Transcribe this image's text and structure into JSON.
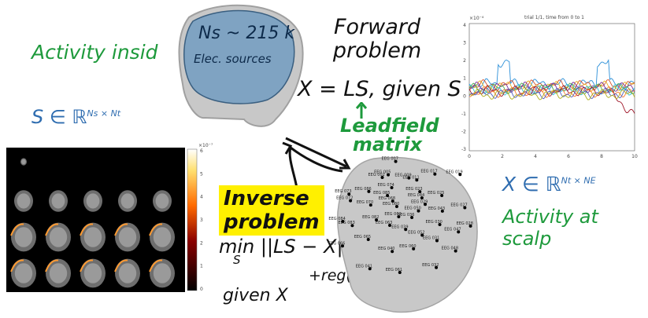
{
  "texts": {
    "activity_inside": "Activity insid",
    "source_math_base": "S ∈ ℝ",
    "source_math_sup": "Ns × Nt",
    "brain_count": "Ns ~ 215 k",
    "brain_label": "Elec. sources",
    "forward_line1": "Forward",
    "forward_line2": "problem",
    "forward_eq": "X = LS, given S",
    "leadfield_line1": "Leadfield",
    "leadfield_line2": "matrix",
    "inverse_line1": "Inverse",
    "inverse_line2": "problem",
    "inverse_eq": "min ||LS − X||",
    "inverse_sub": "S",
    "inverse_reg": "+reg(S)",
    "given_x": "given X",
    "scalp_math_base": "X ∈ ℝ",
    "scalp_math_sup": "Nt × NE",
    "activity_scalp": "Activity at scalp"
  },
  "colorbar": {
    "exponent": "×10⁻⁷",
    "ticks": [
      "6",
      "5",
      "4",
      "3",
      "2",
      "1",
      "0"
    ]
  },
  "eeg_plot": {
    "title": "trial 1/1, time from 0 to 1",
    "exponent": "×10⁻⁴",
    "y_ticks": [
      "4",
      "3",
      "2",
      "1",
      "0",
      "-1",
      "-2",
      "-3"
    ],
    "x_ticks": [
      "0",
      "2",
      "4",
      "6",
      "8",
      "10"
    ]
  },
  "electrodes": [
    "EEG 044",
    "EEG 043",
    "EEG 047",
    "EEG 048",
    "EEG 050",
    "EEG 052",
    "EEG 060",
    "EEG 061",
    "EEG 062",
    "EEG 063",
    "EEG 065",
    "EEG 066",
    "EEG 068",
    "EEG 070",
    "EEG 072",
    "EEG 073",
    "EEG 074",
    "EEG 002",
    "EEG 005",
    "EEG 007",
    "EEG 009",
    "EEG 011",
    "EEG 017",
    "EEG 019",
    "EEG 023",
    "EEG 025",
    "EEG 027",
    "EEG 028",
    "EEG 029",
    "EEG 030",
    "EEG 031",
    "EEG 032",
    "EEG 036",
    "EEG 039",
    "EEG 040",
    "EEG 041",
    "EEG 080",
    "EEG 082",
    "EEG 083",
    "EEG 084",
    "EEG 085",
    "EEG 086"
  ],
  "colors": {
    "green_ink": "#1e9a3c",
    "blue_ink": "#2f6db0",
    "highlight": "#fff000",
    "brain_fill": "#7fa3c2",
    "head_fill": "#c8c8c8"
  }
}
